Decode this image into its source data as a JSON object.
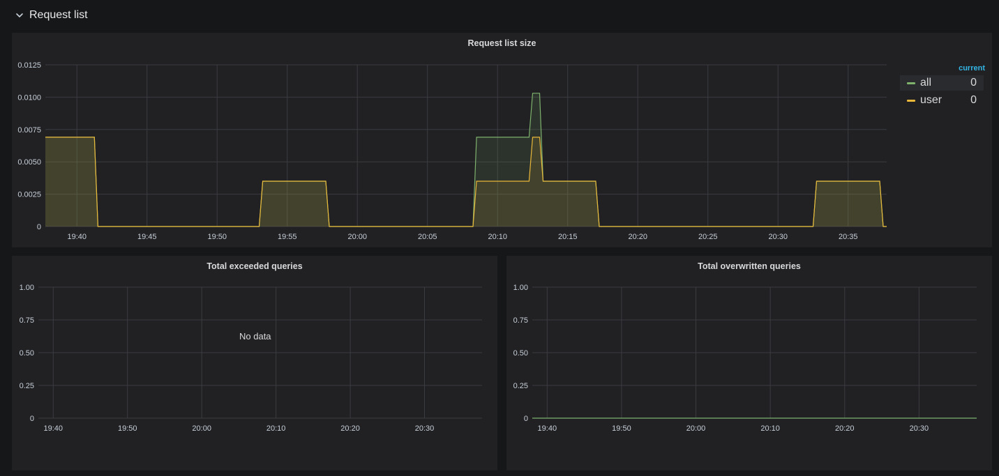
{
  "row": {
    "title": "Request list",
    "collapse_icon": "chevron-down-icon"
  },
  "panels": {
    "main": {
      "title": "Request list size"
    },
    "exceeded": {
      "title": "Total exceeded queries",
      "no_data": "No data"
    },
    "overwritten": {
      "title": "Total overwritten queries"
    }
  },
  "legend": {
    "header": "current",
    "items": [
      {
        "name": "all",
        "value": "0",
        "color": "#7eb26d"
      },
      {
        "name": "user",
        "value": "0",
        "color": "#eab839"
      }
    ]
  },
  "chart_data": [
    {
      "type": "area",
      "title": "Request list size",
      "x_unit": "time (HH:MM)",
      "x_ticks": [
        "19:40",
        "19:45",
        "19:50",
        "19:55",
        "20:00",
        "20:05",
        "20:10",
        "20:15",
        "20:20",
        "20:25",
        "20:30",
        "20:35"
      ],
      "y_ticks": [
        "0",
        "0.0025",
        "0.0050",
        "0.0075",
        "0.0100",
        "0.0125"
      ],
      "ylim": [
        0,
        0.0125
      ],
      "xlim": [
        "19:37:45",
        "20:37:45"
      ],
      "grid": true,
      "legend_position": "right",
      "series": [
        {
          "name": "all",
          "color": "#7eb26d",
          "points": [
            [
              "19:37:45",
              0.0069
            ],
            [
              "19:41:15",
              0.0069
            ],
            [
              "19:41:30",
              0
            ],
            [
              "19:53:00",
              0
            ],
            [
              "19:53:15",
              0.0035
            ],
            [
              "19:57:45",
              0.0035
            ],
            [
              "19:58:00",
              0
            ],
            [
              "20:08:15",
              0
            ],
            [
              "20:08:30",
              0.0069
            ],
            [
              "20:12:15",
              0.0069
            ],
            [
              "20:12:30",
              0.0103
            ],
            [
              "20:13:00",
              0.0103
            ],
            [
              "20:13:15",
              0.0035
            ],
            [
              "20:17:00",
              0.0035
            ],
            [
              "20:17:15",
              0
            ],
            [
              "20:32:30",
              0
            ],
            [
              "20:32:45",
              0.0035
            ],
            [
              "20:37:15",
              0.0035
            ],
            [
              "20:37:30",
              0
            ],
            [
              "20:37:45",
              0
            ]
          ]
        },
        {
          "name": "user",
          "color": "#eab839",
          "points": [
            [
              "19:37:45",
              0.0069
            ],
            [
              "19:41:15",
              0.0069
            ],
            [
              "19:41:30",
              0
            ],
            [
              "19:53:00",
              0
            ],
            [
              "19:53:15",
              0.0035
            ],
            [
              "19:57:45",
              0.0035
            ],
            [
              "19:58:00",
              0
            ],
            [
              "20:08:15",
              0
            ],
            [
              "20:08:30",
              0.0035
            ],
            [
              "20:12:15",
              0.0035
            ],
            [
              "20:12:30",
              0.0069
            ],
            [
              "20:13:00",
              0.0069
            ],
            [
              "20:13:15",
              0.0035
            ],
            [
              "20:17:00",
              0.0035
            ],
            [
              "20:17:15",
              0
            ],
            [
              "20:32:30",
              0
            ],
            [
              "20:32:45",
              0.0035
            ],
            [
              "20:37:15",
              0.0035
            ],
            [
              "20:37:30",
              0
            ],
            [
              "20:37:45",
              0
            ]
          ]
        }
      ]
    },
    {
      "type": "line",
      "title": "Total exceeded queries",
      "x_ticks": [
        "19:40",
        "19:50",
        "20:00",
        "20:10",
        "20:20",
        "20:30"
      ],
      "y_ticks": [
        "0",
        "0.25",
        "0.50",
        "0.75",
        "1.00"
      ],
      "ylim": [
        0,
        1
      ],
      "grid": true,
      "series": []
    },
    {
      "type": "line",
      "title": "Total overwritten queries",
      "x_ticks": [
        "19:40",
        "19:50",
        "20:00",
        "20:10",
        "20:20",
        "20:30"
      ],
      "y_ticks": [
        "0",
        "0.25",
        "0.50",
        "0.75",
        "1.00"
      ],
      "ylim": [
        0,
        1
      ],
      "grid": true,
      "series": [
        {
          "name": "",
          "color": "#7eb26d",
          "points": [
            [
              "19:38:00",
              0
            ],
            [
              "20:37:45",
              0
            ]
          ]
        }
      ]
    }
  ]
}
